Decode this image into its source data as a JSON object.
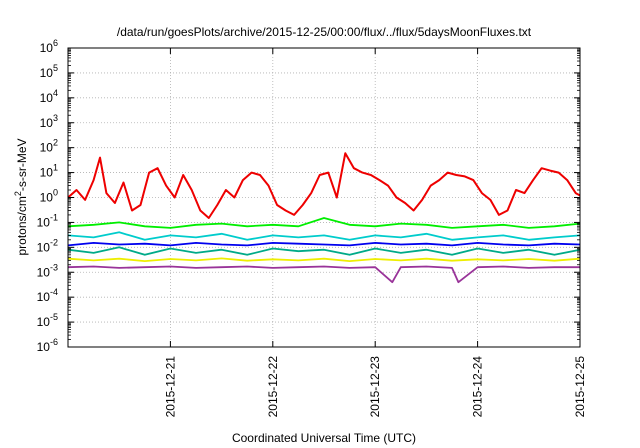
{
  "chart_data": {
    "type": "line",
    "title": "/data/run/goesPlots/archive/2015-12-25/00:00/flux/../flux/5daysMoonFluxes.txt",
    "xlabel": "Coordinated Universal Time (UTC)",
    "ylabel": {
      "base": "protons/cm",
      "sup": "2",
      "rest": "-s-sr-MeV"
    },
    "y_scale": "log",
    "ylim": [
      1e-06,
      1000000.0
    ],
    "xlim": [
      "2015-12-20T00:00",
      "2015-12-25T00:00"
    ],
    "y_ticks": [
      {
        "base": "10",
        "exp": "-6"
      },
      {
        "base": "10",
        "exp": "-5"
      },
      {
        "base": "10",
        "exp": "-4"
      },
      {
        "base": "10",
        "exp": "-3"
      },
      {
        "base": "10",
        "exp": "-2"
      },
      {
        "base": "10",
        "exp": "-1"
      },
      {
        "base": "10",
        "exp": "0"
      },
      {
        "base": "10",
        "exp": "1"
      },
      {
        "base": "10",
        "exp": "2"
      },
      {
        "base": "10",
        "exp": "3"
      },
      {
        "base": "10",
        "exp": "4"
      },
      {
        "base": "10",
        "exp": "5"
      },
      {
        "base": "10",
        "exp": "6"
      }
    ],
    "x_ticks": [
      "2015-12-21",
      "2015-12-22",
      "2015-12-23",
      "2015-12-24",
      "2015-12-25"
    ],
    "grid": true,
    "legend": "none",
    "series": [
      {
        "color": "#ee0000",
        "x": [
          "2015-12-20T00:00",
          "2015-12-20T02:00",
          "2015-12-20T04:00",
          "2015-12-20T06:00",
          "2015-12-20T07:30",
          "2015-12-20T09:00",
          "2015-12-20T11:00",
          "2015-12-20T13:00",
          "2015-12-20T15:00",
          "2015-12-20T17:00",
          "2015-12-20T19:00",
          "2015-12-20T21:00",
          "2015-12-20T23:00",
          "2015-12-21T01:00",
          "2015-12-21T03:00",
          "2015-12-21T05:00",
          "2015-12-21T07:00",
          "2015-12-21T09:00",
          "2015-12-21T11:00",
          "2015-12-21T13:00",
          "2015-12-21T15:00",
          "2015-12-21T17:00",
          "2015-12-21T19:00",
          "2015-12-21T21:00",
          "2015-12-21T23:00",
          "2015-12-22T01:00",
          "2015-12-22T03:00",
          "2015-12-22T05:00",
          "2015-12-22T07:00",
          "2015-12-22T09:00",
          "2015-12-22T11:00",
          "2015-12-22T13:00",
          "2015-12-22T15:00",
          "2015-12-22T17:00",
          "2015-12-22T19:00",
          "2015-12-22T21:00",
          "2015-12-22T23:00",
          "2015-12-23T01:00",
          "2015-12-23T03:00",
          "2015-12-23T05:00",
          "2015-12-23T07:00",
          "2015-12-23T09:00",
          "2015-12-23T11:00",
          "2015-12-23T13:00",
          "2015-12-23T15:00",
          "2015-12-23T17:00",
          "2015-12-23T19:00",
          "2015-12-23T21:00",
          "2015-12-23T23:00",
          "2015-12-24T01:00",
          "2015-12-24T03:00",
          "2015-12-24T05:00",
          "2015-12-24T07:00",
          "2015-12-24T09:00",
          "2015-12-24T11:00",
          "2015-12-24T13:00",
          "2015-12-24T15:00",
          "2015-12-24T17:00",
          "2015-12-24T19:00",
          "2015-12-24T21:00",
          "2015-12-24T23:00",
          "2015-12-25T00:00"
        ],
        "y": [
          1.0,
          2.0,
          0.8,
          5.0,
          40,
          1.5,
          0.6,
          4.0,
          0.3,
          0.5,
          10,
          15,
          3.0,
          1.0,
          8.0,
          2.0,
          0.3,
          0.15,
          0.5,
          2.0,
          1.0,
          5.0,
          10,
          8.0,
          3.0,
          0.5,
          0.3,
          0.2,
          0.5,
          1.5,
          8.0,
          10,
          1.0,
          60,
          15,
          10,
          8.0,
          5.0,
          3.0,
          1.0,
          0.6,
          0.3,
          0.8,
          3.0,
          5.0,
          10,
          8.0,
          7.0,
          5.0,
          1.5,
          0.8,
          0.2,
          0.3,
          2.0,
          1.5,
          5.0,
          15,
          12,
          10,
          5.0,
          1.5,
          1.2
        ]
      },
      {
        "color": "#00ee00",
        "x": [
          "2015-12-20T00:00",
          "2015-12-20T06:00",
          "2015-12-20T12:00",
          "2015-12-20T18:00",
          "2015-12-21T00:00",
          "2015-12-21T06:00",
          "2015-12-21T12:00",
          "2015-12-21T18:00",
          "2015-12-22T00:00",
          "2015-12-22T06:00",
          "2015-12-22T12:00",
          "2015-12-22T18:00",
          "2015-12-23T00:00",
          "2015-12-23T06:00",
          "2015-12-23T12:00",
          "2015-12-23T18:00",
          "2015-12-24T00:00",
          "2015-12-24T06:00",
          "2015-12-24T12:00",
          "2015-12-24T18:00",
          "2015-12-25T00:00"
        ],
        "y": [
          0.07,
          0.08,
          0.1,
          0.07,
          0.06,
          0.08,
          0.09,
          0.07,
          0.08,
          0.07,
          0.15,
          0.08,
          0.07,
          0.09,
          0.08,
          0.06,
          0.07,
          0.08,
          0.06,
          0.07,
          0.09
        ]
      },
      {
        "color": "#00cccc",
        "x": [
          "2015-12-20T00:00",
          "2015-12-20T06:00",
          "2015-12-20T12:00",
          "2015-12-20T18:00",
          "2015-12-21T00:00",
          "2015-12-21T06:00",
          "2015-12-21T12:00",
          "2015-12-21T18:00",
          "2015-12-22T00:00",
          "2015-12-22T06:00",
          "2015-12-22T12:00",
          "2015-12-22T18:00",
          "2015-12-23T00:00",
          "2015-12-23T06:00",
          "2015-12-23T12:00",
          "2015-12-23T18:00",
          "2015-12-24T00:00",
          "2015-12-24T06:00",
          "2015-12-24T12:00",
          "2015-12-24T18:00",
          "2015-12-25T00:00"
        ],
        "y": [
          0.03,
          0.025,
          0.04,
          0.02,
          0.03,
          0.025,
          0.035,
          0.02,
          0.03,
          0.025,
          0.03,
          0.02,
          0.03,
          0.025,
          0.035,
          0.02,
          0.025,
          0.03,
          0.02,
          0.025,
          0.03
        ]
      },
      {
        "color": "#0000ee",
        "x": [
          "2015-12-20T00:00",
          "2015-12-20T06:00",
          "2015-12-20T12:00",
          "2015-12-20T18:00",
          "2015-12-21T00:00",
          "2015-12-21T06:00",
          "2015-12-21T12:00",
          "2015-12-21T18:00",
          "2015-12-22T00:00",
          "2015-12-22T06:00",
          "2015-12-22T12:00",
          "2015-12-22T18:00",
          "2015-12-23T00:00",
          "2015-12-23T06:00",
          "2015-12-23T12:00",
          "2015-12-23T18:00",
          "2015-12-24T00:00",
          "2015-12-24T06:00",
          "2015-12-24T12:00",
          "2015-12-24T18:00",
          "2015-12-25T00:00"
        ],
        "y": [
          0.012,
          0.015,
          0.013,
          0.014,
          0.012,
          0.015,
          0.013,
          0.012,
          0.015,
          0.014,
          0.013,
          0.012,
          0.015,
          0.013,
          0.014,
          0.012,
          0.015,
          0.013,
          0.012,
          0.014,
          0.013
        ]
      },
      {
        "color": "#00aa88",
        "x": [
          "2015-12-20T00:00",
          "2015-12-20T06:00",
          "2015-12-20T12:00",
          "2015-12-20T18:00",
          "2015-12-21T00:00",
          "2015-12-21T06:00",
          "2015-12-21T12:00",
          "2015-12-21T18:00",
          "2015-12-22T00:00",
          "2015-12-22T06:00",
          "2015-12-22T12:00",
          "2015-12-22T18:00",
          "2015-12-23T00:00",
          "2015-12-23T06:00",
          "2015-12-23T12:00",
          "2015-12-23T18:00",
          "2015-12-24T00:00",
          "2015-12-24T06:00",
          "2015-12-24T12:00",
          "2015-12-24T18:00",
          "2015-12-25T00:00"
        ],
        "y": [
          0.008,
          0.006,
          0.01,
          0.005,
          0.009,
          0.006,
          0.008,
          0.005,
          0.009,
          0.007,
          0.008,
          0.005,
          0.009,
          0.006,
          0.008,
          0.005,
          0.009,
          0.006,
          0.008,
          0.005,
          0.008
        ]
      },
      {
        "color": "#eeee00",
        "x": [
          "2015-12-20T00:00",
          "2015-12-20T06:00",
          "2015-12-20T12:00",
          "2015-12-20T18:00",
          "2015-12-21T00:00",
          "2015-12-21T06:00",
          "2015-12-21T12:00",
          "2015-12-21T18:00",
          "2015-12-22T00:00",
          "2015-12-22T06:00",
          "2015-12-22T12:00",
          "2015-12-22T18:00",
          "2015-12-23T00:00",
          "2015-12-23T06:00",
          "2015-12-23T12:00",
          "2015-12-23T18:00",
          "2015-12-24T00:00",
          "2015-12-24T06:00",
          "2015-12-24T12:00",
          "2015-12-24T18:00",
          "2015-12-25T00:00"
        ],
        "y": [
          0.0035,
          0.003,
          0.0035,
          0.0028,
          0.0034,
          0.003,
          0.0036,
          0.0029,
          0.0033,
          0.003,
          0.0035,
          0.0028,
          0.0034,
          0.003,
          0.0035,
          0.0029,
          0.0033,
          0.003,
          0.0034,
          0.0029,
          0.0035
        ]
      },
      {
        "color": "#993399",
        "x": [
          "2015-12-20T00:00",
          "2015-12-20T06:00",
          "2015-12-20T12:00",
          "2015-12-20T18:00",
          "2015-12-21T00:00",
          "2015-12-21T06:00",
          "2015-12-21T12:00",
          "2015-12-21T18:00",
          "2015-12-22T00:00",
          "2015-12-22T06:00",
          "2015-12-22T12:00",
          "2015-12-22T18:00",
          "2015-12-23T00:00",
          "2015-12-23T04:00",
          "2015-12-23T06:00",
          "2015-12-23T12:00",
          "2015-12-23T18:00",
          "2015-12-23T19:30",
          "2015-12-24T00:00",
          "2015-12-24T06:00",
          "2015-12-24T12:00",
          "2015-12-24T18:00",
          "2015-12-25T00:00"
        ],
        "y": [
          0.0016,
          0.0017,
          0.0015,
          0.0016,
          0.0017,
          0.0015,
          0.0016,
          0.0017,
          0.0015,
          0.0016,
          0.0017,
          0.0015,
          0.0016,
          0.0004,
          0.0016,
          0.0017,
          0.0015,
          0.0004,
          0.0016,
          0.0017,
          0.0015,
          0.0016,
          0.0016
        ]
      }
    ]
  }
}
